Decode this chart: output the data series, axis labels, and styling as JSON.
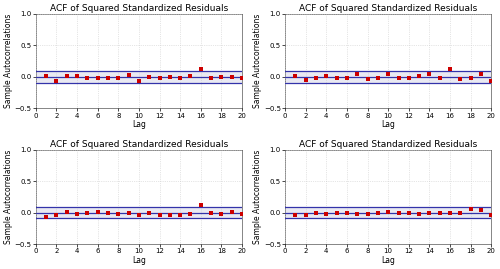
{
  "title": "ACF of Squared Standardized Residuals",
  "xlabel": "Lag",
  "ylabel": "Sample Autocorrelations",
  "xlim": [
    0,
    20
  ],
  "ylim": [
    -0.5,
    1.0
  ],
  "yticks": [
    -0.5,
    0.0,
    0.5,
    1.0
  ],
  "xticks": [
    0,
    2,
    4,
    6,
    8,
    10,
    12,
    14,
    16,
    18,
    20
  ],
  "ci": 0.09,
  "lags": [
    1,
    2,
    3,
    4,
    5,
    6,
    7,
    8,
    9,
    10,
    11,
    12,
    13,
    14,
    15,
    16,
    17,
    18,
    19,
    20
  ],
  "acf_1": [
    0.01,
    -0.06,
    0.02,
    0.02,
    -0.01,
    -0.01,
    -0.01,
    -0.01,
    0.03,
    -0.07,
    0.0,
    -0.01,
    0.0,
    -0.01,
    0.01,
    0.12,
    -0.01,
    0.0,
    0.0,
    -0.01
  ],
  "acf_2": [
    0.01,
    -0.05,
    -0.02,
    0.02,
    -0.01,
    -0.01,
    0.04,
    -0.04,
    -0.01,
    0.05,
    -0.01,
    -0.01,
    0.01,
    0.04,
    -0.02,
    0.12,
    -0.03,
    -0.02,
    0.04,
    -0.07
  ],
  "acf_3": [
    -0.07,
    -0.03,
    0.02,
    -0.02,
    -0.01,
    0.02,
    -0.01,
    -0.02,
    -0.01,
    -0.03,
    -0.01,
    -0.03,
    -0.04,
    -0.04,
    -0.02,
    0.12,
    0.0,
    -0.02,
    0.01,
    -0.02
  ],
  "acf_4": [
    -0.03,
    -0.04,
    -0.01,
    -0.02,
    -0.01,
    -0.01,
    -0.02,
    -0.02,
    -0.01,
    0.01,
    -0.01,
    -0.01,
    -0.02,
    -0.01,
    0.0,
    0.0,
    -0.01,
    0.06,
    0.05,
    -0.04
  ],
  "marker_color": "#cc0000",
  "ci_line_color": "#3333aa",
  "zero_line_color": "#3333aa",
  "ci_fill_color": "#aaaacc",
  "bg_color": "#ffffff",
  "grid_color": "#cccccc",
  "title_fontsize": 6.5,
  "label_fontsize": 5.5,
  "tick_fontsize": 5.0
}
